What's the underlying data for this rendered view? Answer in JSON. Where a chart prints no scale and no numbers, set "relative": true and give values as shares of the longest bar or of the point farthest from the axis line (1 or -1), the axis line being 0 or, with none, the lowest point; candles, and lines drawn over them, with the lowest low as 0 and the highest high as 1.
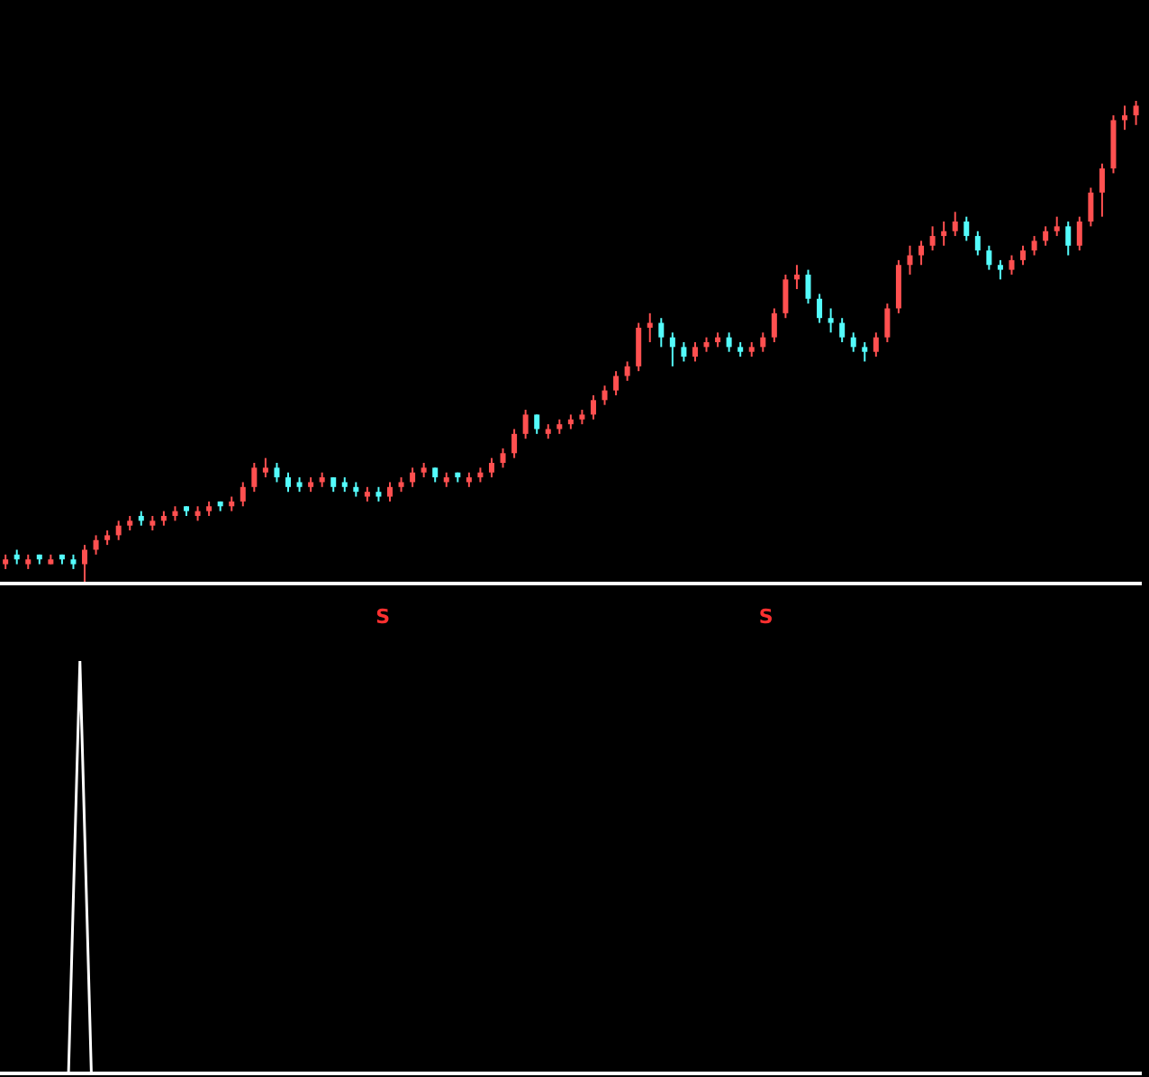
{
  "chart_data": [
    {
      "type": "candlestick",
      "relative": true,
      "categories": [
        null,
        null,
        null,
        null,
        null,
        null,
        null,
        null,
        null,
        null,
        null,
        null,
        null,
        null,
        null,
        null,
        null,
        null,
        null,
        null,
        null,
        null,
        null,
        null,
        null,
        null,
        null,
        null,
        null,
        null,
        null,
        null,
        null,
        null,
        null,
        null,
        null,
        null,
        null,
        null,
        null,
        null,
        null,
        null,
        null,
        null,
        null,
        null,
        null,
        null,
        null,
        null,
        null,
        null,
        null,
        null,
        null,
        null,
        null,
        null,
        null,
        null,
        null,
        null,
        null,
        null,
        null,
        null,
        null,
        null,
        null,
        null,
        null,
        null,
        null,
        null,
        null,
        null,
        null,
        null,
        null,
        null,
        null,
        null,
        null,
        null,
        null,
        null,
        null,
        null,
        null,
        null,
        null,
        null,
        null,
        null,
        null,
        null,
        null,
        null,
        null
      ],
      "ohlc": [
        [
          0.04,
          0.06,
          0.03,
          0.05
        ],
        [
          0.06,
          0.07,
          0.04,
          0.05
        ],
        [
          0.04,
          0.06,
          0.03,
          0.05
        ],
        [
          0.06,
          0.06,
          0.04,
          0.05
        ],
        [
          0.04,
          0.06,
          0.04,
          0.05
        ],
        [
          0.06,
          0.06,
          0.04,
          0.05
        ],
        [
          0.05,
          0.06,
          0.03,
          0.04
        ],
        [
          0.04,
          0.08,
          0,
          0.07
        ],
        [
          0.07,
          0.1,
          0.06,
          0.09
        ],
        [
          0.09,
          0.11,
          0.08,
          0.1
        ],
        [
          0.1,
          0.13,
          0.09,
          0.12
        ],
        [
          0.12,
          0.14,
          0.11,
          0.13
        ],
        [
          0.14,
          0.15,
          0.12,
          0.13
        ],
        [
          0.12,
          0.14,
          0.11,
          0.13
        ],
        [
          0.13,
          0.15,
          0.12,
          0.14
        ],
        [
          0.14,
          0.16,
          0.13,
          0.15
        ],
        [
          0.16,
          0.16,
          0.14,
          0.15
        ],
        [
          0.14,
          0.16,
          0.13,
          0.15
        ],
        [
          0.15,
          0.17,
          0.14,
          0.16
        ],
        [
          0.17,
          0.17,
          0.15,
          0.16
        ],
        [
          0.16,
          0.18,
          0.15,
          0.17
        ],
        [
          0.17,
          0.21,
          0.16,
          0.2
        ],
        [
          0.2,
          0.25,
          0.19,
          0.24
        ],
        [
          0.23,
          0.26,
          0.22,
          0.24
        ],
        [
          0.24,
          0.25,
          0.21,
          0.22
        ],
        [
          0.22,
          0.23,
          0.19,
          0.2
        ],
        [
          0.21,
          0.22,
          0.19,
          0.2
        ],
        [
          0.2,
          0.22,
          0.19,
          0.21
        ],
        [
          0.21,
          0.23,
          0.2,
          0.22
        ],
        [
          0.22,
          0.22,
          0.19,
          0.2
        ],
        [
          0.21,
          0.22,
          0.19,
          0.2
        ],
        [
          0.2,
          0.21,
          0.18,
          0.19
        ],
        [
          0.18,
          0.2,
          0.17,
          0.19
        ],
        [
          0.19,
          0.2,
          0.17,
          0.18
        ],
        [
          0.18,
          0.21,
          0.17,
          0.2
        ],
        [
          0.2,
          0.22,
          0.19,
          0.21
        ],
        [
          0.21,
          0.24,
          0.2,
          0.23
        ],
        [
          0.23,
          0.25,
          0.22,
          0.24
        ],
        [
          0.24,
          0.24,
          0.21,
          0.22
        ],
        [
          0.21,
          0.23,
          0.2,
          0.22
        ],
        [
          0.23,
          0.23,
          0.21,
          0.22
        ],
        [
          0.21,
          0.23,
          0.2,
          0.22
        ],
        [
          0.22,
          0.24,
          0.21,
          0.23
        ],
        [
          0.23,
          0.26,
          0.22,
          0.25
        ],
        [
          0.25,
          0.28,
          0.24,
          0.27
        ],
        [
          0.27,
          0.32,
          0.26,
          0.31
        ],
        [
          0.31,
          0.36,
          0.3,
          0.35
        ],
        [
          0.35,
          0.35,
          0.31,
          0.32
        ],
        [
          0.31,
          0.33,
          0.3,
          0.32
        ],
        [
          0.32,
          0.34,
          0.31,
          0.33
        ],
        [
          0.33,
          0.35,
          0.32,
          0.34
        ],
        [
          0.34,
          0.36,
          0.33,
          0.35
        ],
        [
          0.35,
          0.39,
          0.34,
          0.38
        ],
        [
          0.38,
          0.41,
          0.37,
          0.4
        ],
        [
          0.4,
          0.44,
          0.39,
          0.43
        ],
        [
          0.43,
          0.46,
          0.42,
          0.45
        ],
        [
          0.45,
          0.54,
          0.44,
          0.53
        ],
        [
          0.53,
          0.56,
          0.5,
          0.54
        ],
        [
          0.54,
          0.55,
          0.49,
          0.51
        ],
        [
          0.51,
          0.52,
          0.45,
          0.49
        ],
        [
          0.49,
          0.5,
          0.46,
          0.47
        ],
        [
          0.47,
          0.5,
          0.46,
          0.49
        ],
        [
          0.49,
          0.51,
          0.48,
          0.5
        ],
        [
          0.5,
          0.52,
          0.49,
          0.51
        ],
        [
          0.51,
          0.52,
          0.48,
          0.49
        ],
        [
          0.49,
          0.5,
          0.47,
          0.48
        ],
        [
          0.48,
          0.5,
          0.47,
          0.49
        ],
        [
          0.49,
          0.52,
          0.48,
          0.51
        ],
        [
          0.51,
          0.57,
          0.5,
          0.56
        ],
        [
          0.56,
          0.64,
          0.55,
          0.63
        ],
        [
          0.63,
          0.66,
          0.61,
          0.64
        ],
        [
          0.64,
          0.65,
          0.58,
          0.59
        ],
        [
          0.59,
          0.6,
          0.54,
          0.55
        ],
        [
          0.55,
          0.57,
          0.52,
          0.54
        ],
        [
          0.54,
          0.55,
          0.5,
          0.51
        ],
        [
          0.51,
          0.52,
          0.48,
          0.49
        ],
        [
          0.49,
          0.5,
          0.46,
          0.48
        ],
        [
          0.48,
          0.52,
          0.47,
          0.51
        ],
        [
          0.51,
          0.58,
          0.5,
          0.57
        ],
        [
          0.57,
          0.67,
          0.56,
          0.66
        ],
        [
          0.66,
          0.7,
          0.64,
          0.68
        ],
        [
          0.68,
          0.71,
          0.66,
          0.7
        ],
        [
          0.7,
          0.74,
          0.69,
          0.72
        ],
        [
          0.72,
          0.75,
          0.7,
          0.73
        ],
        [
          0.73,
          0.77,
          0.72,
          0.75
        ],
        [
          0.75,
          0.76,
          0.71,
          0.72
        ],
        [
          0.72,
          0.73,
          0.68,
          0.69
        ],
        [
          0.69,
          0.7,
          0.65,
          0.66
        ],
        [
          0.66,
          0.67,
          0.63,
          0.65
        ],
        [
          0.65,
          0.68,
          0.64,
          0.67
        ],
        [
          0.67,
          0.7,
          0.66,
          0.69
        ],
        [
          0.69,
          0.72,
          0.68,
          0.71
        ],
        [
          0.71,
          0.74,
          0.7,
          0.73
        ],
        [
          0.73,
          0.76,
          0.72,
          0.74
        ],
        [
          0.74,
          0.75,
          0.68,
          0.7
        ],
        [
          0.7,
          0.76,
          0.69,
          0.75
        ],
        [
          0.75,
          0.82,
          0.74,
          0.81
        ],
        [
          0.81,
          0.87,
          0.76,
          0.86
        ],
        [
          0.86,
          0.97,
          0.85,
          0.96
        ],
        [
          0.96,
          0.99,
          0.94,
          0.97
        ],
        [
          0.97,
          1,
          0.95,
          0.99
        ]
      ],
      "colors": [
        "#ff5050",
        "#54fcfc",
        "#ff5050",
        "#54fcfc",
        "#ff5050",
        "#54fcfc",
        "#54fcfc",
        "#ff5050",
        "#ff5050",
        "#ff5050",
        "#ff5050",
        "#ff5050",
        "#54fcfc",
        "#ff5050",
        "#ff5050",
        "#ff5050",
        "#54fcfc",
        "#ff5050",
        "#ff5050",
        "#54fcfc",
        "#ff5050",
        "#ff5050",
        "#ff5050",
        "#ff5050",
        "#54fcfc",
        "#54fcfc",
        "#54fcfc",
        "#ff5050",
        "#ff5050",
        "#54fcfc",
        "#54fcfc",
        "#54fcfc",
        "#ff5050",
        "#54fcfc",
        "#ff5050",
        "#ff5050",
        "#ff5050",
        "#ff5050",
        "#54fcfc",
        "#ff5050",
        "#54fcfc",
        "#ff5050",
        "#ff5050",
        "#ff5050",
        "#ff5050",
        "#ff5050",
        "#ff5050",
        "#54fcfc",
        "#ff5050",
        "#ff5050",
        "#ff5050",
        "#ff5050",
        "#ff5050",
        "#ff5050",
        "#ff5050",
        "#ff5050",
        "#ff5050",
        "#ff5050",
        "#54fcfc",
        "#54fcfc",
        "#54fcfc",
        "#ff5050",
        "#ff5050",
        "#ff5050",
        "#54fcfc",
        "#54fcfc",
        "#ff5050",
        "#ff5050",
        "#ff5050",
        "#ff5050",
        "#ff5050",
        "#54fcfc",
        "#54fcfc",
        "#54fcfc",
        "#54fcfc",
        "#54fcfc",
        "#54fcfc",
        "#ff5050",
        "#ff5050",
        "#ff5050",
        "#ff5050",
        "#ff5050",
        "#ff5050",
        "#ff5050",
        "#ff5050",
        "#54fcfc",
        "#54fcfc",
        "#54fcfc",
        "#54fcfc",
        "#ff5050",
        "#ff5050",
        "#ff5050",
        "#ff5050",
        "#ff5050",
        "#54fcfc",
        "#ff5050",
        "#ff5050",
        "#ff5050",
        "#ff5050",
        "#ff5050",
        "#ff5050"
      ]
    },
    {
      "type": "line",
      "relative": true,
      "annotations": [
        "S",
        "S"
      ],
      "categories": [
        null,
        null,
        null,
        null,
        null,
        null,
        null,
        null,
        null,
        null,
        null,
        null,
        null,
        null,
        null,
        null,
        null,
        null,
        null,
        null,
        null,
        null,
        null,
        null,
        null,
        null,
        null,
        null,
        null,
        null,
        null,
        null,
        null,
        null,
        null,
        null,
        null,
        null,
        null,
        null,
        null,
        null,
        null,
        null,
        null,
        null,
        null,
        null,
        null,
        null,
        null,
        null,
        null,
        null,
        null,
        null,
        null,
        null,
        null,
        null,
        null,
        null,
        null,
        null,
        null,
        null,
        null,
        null,
        null,
        null,
        null,
        null,
        null,
        null,
        null,
        null,
        null,
        null,
        null,
        null,
        null,
        null,
        null,
        null,
        null,
        null,
        null,
        null,
        null,
        null,
        null,
        null,
        null,
        null,
        null,
        null,
        null,
        null,
        null,
        null,
        null
      ],
      "series": [
        {
          "color": "#ffffff",
          "values": [
            0,
            0,
            0,
            0,
            0,
            0,
            0,
            1,
            0,
            0,
            0,
            0,
            0,
            0,
            0,
            0,
            0,
            0,
            0,
            0,
            0,
            0,
            0,
            0,
            0,
            0,
            0,
            0,
            0,
            0,
            0,
            0,
            0,
            0,
            0,
            0,
            0,
            0,
            0,
            0,
            0,
            0,
            0,
            0,
            0,
            0,
            0,
            0,
            0,
            0,
            0,
            0,
            0,
            0,
            0,
            0,
            0,
            0,
            0,
            0,
            0,
            0,
            0,
            0,
            0,
            0,
            0,
            0,
            0,
            0,
            0,
            0,
            0,
            0,
            0,
            0,
            0,
            0,
            0,
            0,
            0,
            0,
            0,
            0,
            0,
            0,
            0,
            0,
            0,
            0,
            0,
            0,
            0,
            0,
            0,
            0,
            0,
            0,
            0,
            0,
            0
          ]
        }
      ]
    }
  ]
}
